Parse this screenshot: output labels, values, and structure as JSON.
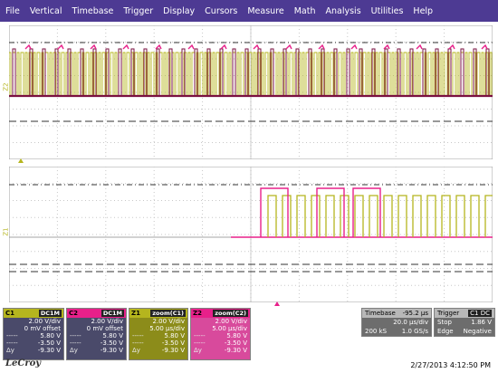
{
  "menu": [
    "File",
    "Vertical",
    "Timebase",
    "Trigger",
    "Display",
    "Cursors",
    "Measure",
    "Math",
    "Analysis",
    "Utilities",
    "Help"
  ],
  "colors": {
    "menubar": "#4d3a93",
    "c1": "#b5b51e",
    "c2": "#e8208a",
    "dark_c2": "#7a1040",
    "z1_bg": "#8c8c1a",
    "z2_bg": "#d84a9c"
  },
  "top_panel": {
    "trace_label": "Z2"
  },
  "bottom_panel": {
    "trace_label": "Z1"
  },
  "descriptors": [
    {
      "id": "C1",
      "tag": "DC1M",
      "head_color": "#b5b51e",
      "body_color": "#4a4a6a",
      "rows": [
        [
          "",
          "2.00 V/div"
        ],
        [
          "",
          "0 mV offset"
        ],
        [
          "-----",
          "5.80 V"
        ],
        [
          "-----",
          "-3.50 V"
        ],
        [
          "Δy",
          "-9.30 V"
        ]
      ]
    },
    {
      "id": "C2",
      "tag": "DC1M",
      "head_color": "#e8208a",
      "body_color": "#4a4a6a",
      "rows": [
        [
          "",
          "2.00 V/div"
        ],
        [
          "",
          "0 mV offset"
        ],
        [
          "-----",
          "5.80 V"
        ],
        [
          "-----",
          "-3.50 V"
        ],
        [
          "Δy",
          "-9.30 V"
        ]
      ]
    },
    {
      "id": "Z1",
      "tag": "zoom(C1)",
      "head_color": "#b5b51e",
      "body_color": "#8c8c1a",
      "rows": [
        [
          "",
          "2.00 V/div"
        ],
        [
          "",
          "5.00 µs/div"
        ],
        [
          "-----",
          "5.80 V"
        ],
        [
          "-----",
          "-3.50 V"
        ],
        [
          "Δy",
          "-9.30 V"
        ]
      ]
    },
    {
      "id": "Z2",
      "tag": "zoom(C2)",
      "head_color": "#e8208a",
      "body_color": "#d84a9c",
      "rows": [
        [
          "",
          "2.00 V/div"
        ],
        [
          "",
          "5.00 µs/div"
        ],
        [
          "-----",
          "5.80 V"
        ],
        [
          "-----",
          "-3.50 V"
        ],
        [
          "Δy",
          "-9.30 V"
        ]
      ]
    }
  ],
  "timebase": {
    "label": "Timebase",
    "delay": "-95.2 µs",
    "per_div": "20.0 µs/div",
    "samples": "200 kS",
    "rate": "1.0 GS/s"
  },
  "trigger": {
    "label": "Trigger",
    "tag": "C1 DC",
    "mode": "Stop",
    "level": "1.86 V",
    "type": "Edge",
    "slope": "Negative"
  },
  "footer": {
    "logo": "LeCroy",
    "datetime": "2/27/2013 4:12:50 PM"
  }
}
